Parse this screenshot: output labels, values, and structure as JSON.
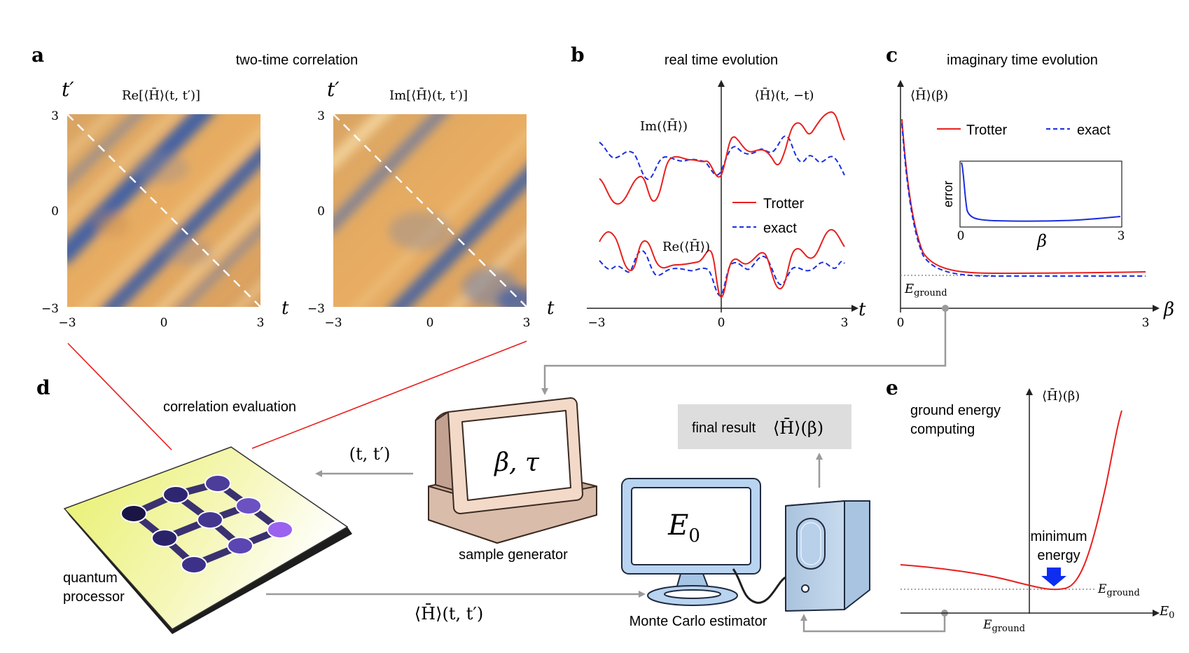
{
  "panel_a": {
    "letter": "a",
    "title": "two-time correlation",
    "left_heatmap_label": "Re[⟨H̄⟩(t, t′)]",
    "right_heatmap_label": "Im[⟨H̄⟩(t, t′)]",
    "y_axis_label": "t′",
    "x_axis_label": "t",
    "x_ticks": [
      "−3",
      "0",
      "3"
    ],
    "y_ticks": [
      "3",
      "0",
      "−3"
    ]
  },
  "panel_b": {
    "letter": "b",
    "title": "real time evolution",
    "y_axis_label": "⟨H̄⟩(t, −t)",
    "x_axis_label": "t",
    "x_ticks": [
      "−3",
      "0",
      "3"
    ],
    "im_label": "Im(⟨H̄⟩)",
    "re_label": "Re(⟨H̄⟩)",
    "legend_trotter": "Trotter",
    "legend_exact": "exact"
  },
  "panel_c": {
    "letter": "c",
    "title": "imaginary time evolution",
    "y_axis_label": "⟨H̄⟩(β)",
    "x_axis_label": "β",
    "x_ticks": [
      "0",
      "3"
    ],
    "legend_trotter": "Trotter",
    "legend_exact": "exact",
    "ground_label": "E",
    "ground_sub": "ground",
    "inset_ylabel": "error",
    "inset_xlabel": "β",
    "inset_x_ticks": [
      "0",
      "3"
    ]
  },
  "panel_d": {
    "letter": "d",
    "correlation_label": "correlation evaluation",
    "quantum_label_line1": "quantum",
    "quantum_label_line2": "processor",
    "tt_label": "(t, t′)",
    "screen_text": "β, τ",
    "sample_label": "sample generator",
    "final_result_text": "final result",
    "final_result_math": "⟨H̄⟩(β)",
    "e0_main": "E",
    "e0_sub": "0",
    "mc_label": "Monte Carlo estimator",
    "bottom_label": "⟨H̄⟩(t, t′)"
  },
  "panel_e": {
    "letter": "e",
    "title_line1": "ground energy",
    "title_line2": "computing",
    "y_axis_label": "⟨H̄⟩(β)",
    "x_axis_label": "E",
    "x_axis_sub": "0",
    "min_line1": "minimum",
    "min_line2": "energy",
    "ground_label": "E",
    "ground_sub": "ground"
  },
  "colors": {
    "trotter": "#e8201e",
    "exact": "#1a2ee0",
    "arrow_gray": "#9a9a9a",
    "heat_orange": "#e3a45e",
    "heat_blue": "#3d64a8",
    "chip_yellow": "#f2f58a",
    "monitor_blue": "#b8d4f0",
    "computer_tan": "#d8b8a6"
  },
  "icons": [
    "quantum-chip-icon",
    "retro-computer-icon",
    "monitor-icon",
    "tower-pc-icon",
    "down-arrow-icon"
  ]
}
